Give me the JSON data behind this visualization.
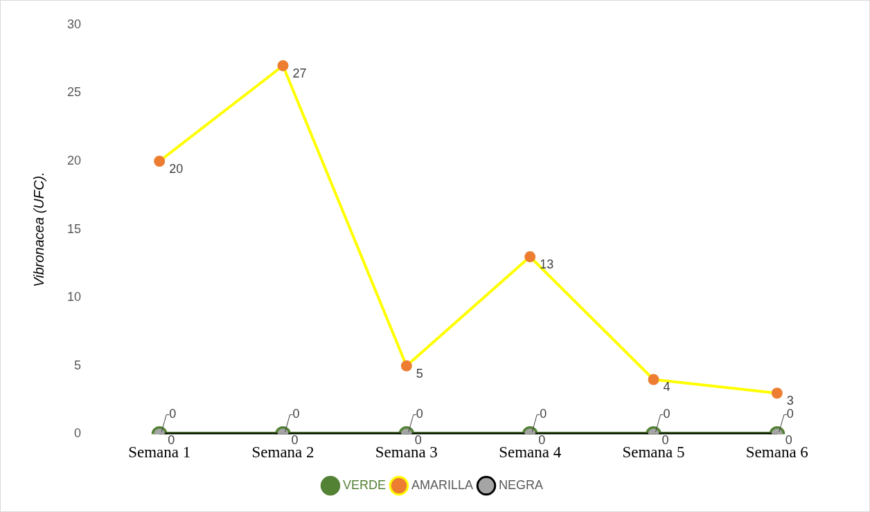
{
  "chart_data": {
    "type": "line",
    "ylabel": "Vibronacea (UFC).",
    "categories": [
      "Semana 1",
      "Semana 2",
      "Semana 3",
      "Semana 4",
      "Semana 5",
      "Semana 6"
    ],
    "series": [
      {
        "name": "VERDE",
        "color": "#548235",
        "colors": [
          "#548235",
          "#548235",
          "#548235",
          "#548235",
          "#548235",
          "#548235"
        ],
        "values": [
          0,
          0,
          0,
          0,
          0,
          0
        ]
      },
      {
        "name": "AMARILLA",
        "color": "#ffff00",
        "colors": [
          "#ed7d31",
          "#ed7d31",
          "#ed7d31",
          "#ed7d31",
          "#ed7d31",
          "#ed7d31"
        ],
        "values": [
          20,
          27,
          5,
          13,
          4,
          3
        ]
      },
      {
        "name": "NEGRA",
        "color": "#000000",
        "colors": [
          "#a5a5a5",
          "#a5a5a5",
          "#a5a5a5",
          "#a5a5a5",
          "#a5a5a5",
          "#a5a5a5"
        ],
        "values": [
          0,
          0,
          0,
          0,
          0,
          0
        ]
      }
    ],
    "ylim": [
      0,
      30
    ],
    "yticks": [
      0,
      5,
      10,
      15,
      20,
      25,
      30
    ],
    "grid": false,
    "legend": "bottom",
    "marker": "circle",
    "line_style": "solid",
    "data_labels": true
  }
}
